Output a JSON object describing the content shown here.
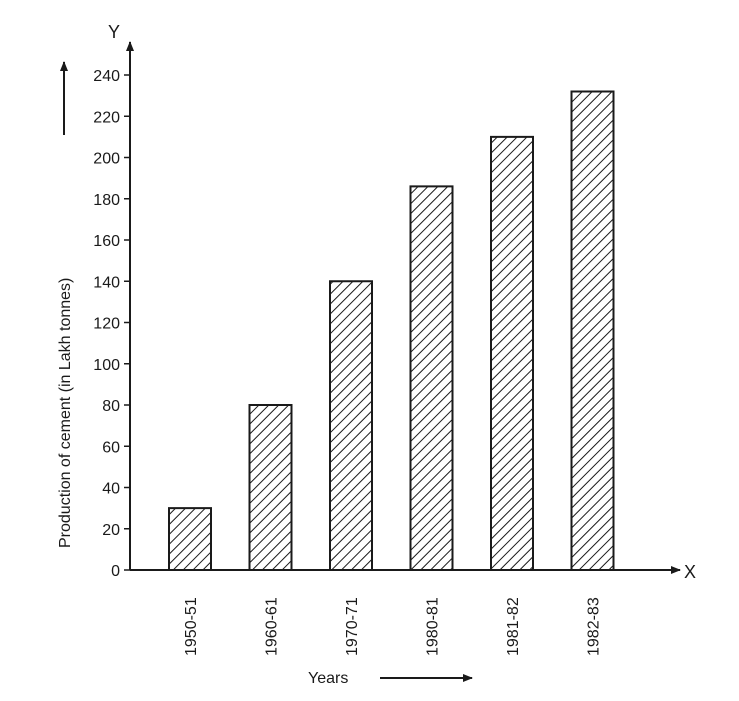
{
  "chart_data": {
    "type": "bar",
    "categories": [
      "1950-51",
      "1960-61",
      "1970-71",
      "1980-81",
      "1981-82",
      "1982-83"
    ],
    "values": [
      30,
      80,
      140,
      186,
      210,
      232
    ],
    "xlabel": "Years",
    "ylabel": "Production of cement (in Lakh tonnes)",
    "x_axis_letter": "X",
    "y_axis_letter": "Y",
    "ylim": [
      0,
      240
    ],
    "yticks": [
      0,
      20,
      40,
      60,
      80,
      100,
      120,
      140,
      160,
      180,
      200,
      220,
      240
    ],
    "grid": false,
    "bar_fill": "diagonal-hatch",
    "colors": {
      "ink": "#1a1a1a",
      "background": "#ffffff"
    }
  }
}
